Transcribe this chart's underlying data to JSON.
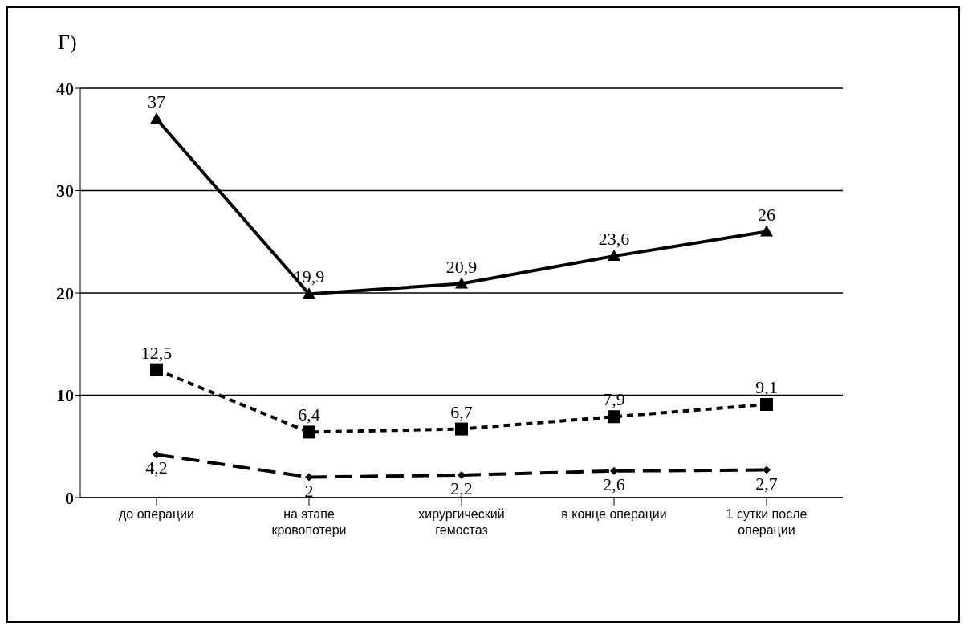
{
  "chart_data": {
    "type": "line",
    "title": "Г)",
    "categories": [
      "до операции",
      "на этапе кровопотери",
      "хирургический гемостаз",
      "в конце операции",
      "1 сутки после операции"
    ],
    "series": [
      {
        "color": "#000000",
        "values": [
          37,
          19.9,
          20.9,
          23.6,
          26
        ],
        "value_labels": [
          "37",
          "19,9",
          "20,9",
          "23,6",
          "26"
        ],
        "marker": "triangle",
        "line_style": "solid"
      },
      {
        "color": "#000000",
        "values": [
          12.5,
          6.4,
          6.7,
          7.9,
          9.1
        ],
        "value_labels": [
          "12,5",
          "6,4",
          "6,7",
          "7,9",
          "9,1"
        ],
        "marker": "square",
        "line_style": "dotted"
      },
      {
        "color": "#000000",
        "values": [
          4.2,
          2,
          2.2,
          2.6,
          2.7
        ],
        "value_labels": [
          "4,2",
          "2",
          "2,2",
          "2,6",
          "2,7"
        ],
        "marker": "diamond",
        "line_style": "dashed"
      }
    ],
    "ylim": [
      0,
      40
    ],
    "yticks": [
      0,
      10,
      20,
      30,
      40
    ],
    "grid": "y",
    "legend": false
  }
}
